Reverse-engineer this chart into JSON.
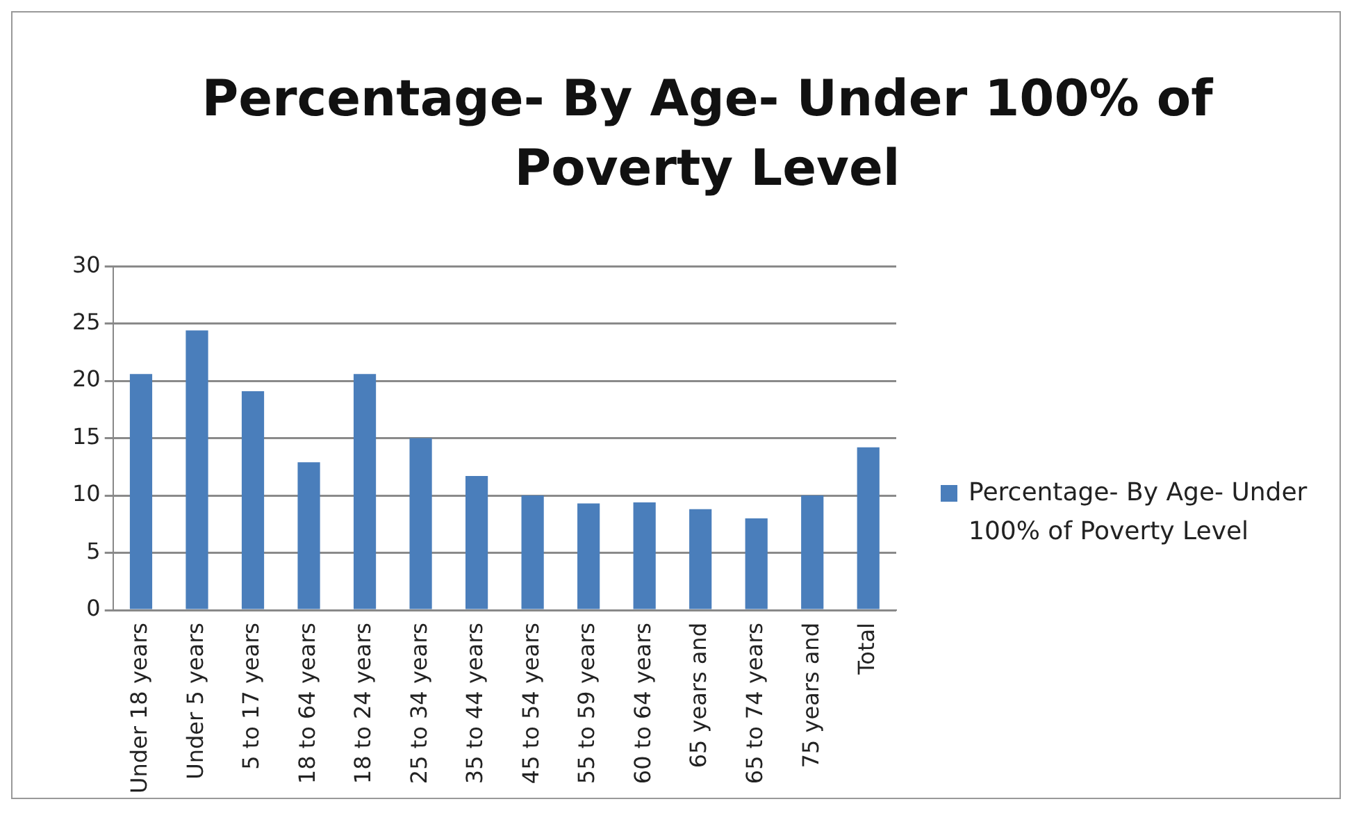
{
  "chart_data": {
    "type": "bar",
    "title": "Percentage- By Age- Under 100% of Poverty Level",
    "categories": [
      "Under 18 years",
      "Under 5 years",
      "5 to 17 years",
      "18 to 64 years",
      "18 to 24 years",
      "25 to 34 years",
      "35 to 44 years",
      "45 to 54 years",
      "55 to 59 years",
      "60 to 64 years",
      "65 years and",
      "65 to 74 years",
      "75 years and",
      "Total"
    ],
    "series": [
      {
        "name": "Percentage- By Age- Under 100% of Poverty Level",
        "color": "#4a7ebb",
        "values": [
          20.6,
          24.4,
          19.1,
          12.9,
          20.6,
          15.0,
          11.7,
          10.0,
          9.3,
          9.4,
          8.8,
          8.0,
          10.0,
          14.2
        ]
      }
    ],
    "ylim": [
      0,
      30
    ],
    "yticks": [
      0,
      5,
      10,
      15,
      20,
      25,
      30
    ],
    "grid": "y",
    "legend": "right"
  }
}
